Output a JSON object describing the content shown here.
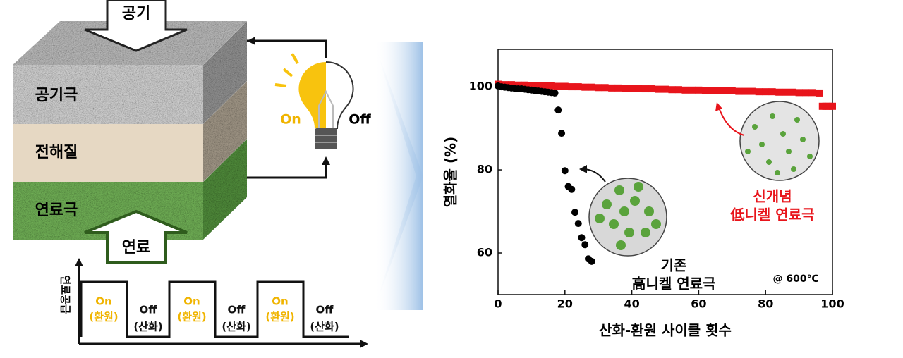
{
  "diagram": {
    "arrows": {
      "top": "공기",
      "bottom": "연료"
    },
    "layers": [
      "공기극",
      "전해질",
      "연료극"
    ],
    "bulb": {
      "on": "On",
      "off": "Off"
    },
    "pulse": {
      "axis_label": "연료공급",
      "phases": [
        {
          "state": "On",
          "action": "(환원)"
        },
        {
          "state": "Off",
          "action": "(산화)"
        },
        {
          "state": "On",
          "action": "(환원)"
        },
        {
          "state": "Off",
          "action": "(산화)"
        },
        {
          "state": "On",
          "action": "(환원)"
        },
        {
          "state": "Off",
          "action": "(산화)"
        }
      ]
    }
  },
  "chart_data": {
    "type": "scatter",
    "x_label": "산화-환원 사이클 횟수",
    "y_label": "열화율 (%)",
    "xlim": [
      0,
      100
    ],
    "xticks": [
      0,
      20,
      40,
      60,
      80,
      100
    ],
    "ylim": [
      50,
      109
    ],
    "yticks": [
      60,
      80,
      100
    ],
    "series": [
      {
        "color": "#e8141b",
        "marker": "square",
        "x": [
          0,
          2,
          4,
          6,
          8,
          10,
          12,
          14,
          16,
          18,
          20,
          22,
          24,
          26,
          28,
          30,
          32,
          34,
          36,
          38,
          40,
          42,
          44,
          46,
          48,
          50,
          52,
          54,
          56,
          58,
          60,
          62,
          64,
          66,
          68,
          70,
          72,
          74,
          76,
          78,
          80,
          82,
          84,
          86,
          88,
          90,
          92,
          94,
          96,
          97,
          98,
          99,
          100
        ],
        "values": [
          100.6,
          100.5,
          100.5,
          100.4,
          100.4,
          100.3,
          100.3,
          100.2,
          100.2,
          100.1,
          100.1,
          100.0,
          100.0,
          99.9,
          99.9,
          99.8,
          99.8,
          99.7,
          99.7,
          99.6,
          99.6,
          99.6,
          99.5,
          99.5,
          99.4,
          99.4,
          99.3,
          99.3,
          99.2,
          99.2,
          99.2,
          99.1,
          99.1,
          99.0,
          99.0,
          99.0,
          98.9,
          98.9,
          98.9,
          98.8,
          98.8,
          98.8,
          98.7,
          98.7,
          98.7,
          98.6,
          98.6,
          98.6,
          98.5,
          95.3,
          95.3,
          95.3,
          95.3
        ]
      },
      {
        "color": "#000000",
        "marker": "circle",
        "x": [
          0,
          1,
          2,
          3,
          4,
          5,
          6,
          7,
          8,
          9,
          10,
          11,
          12,
          13,
          14,
          15,
          16,
          17,
          18,
          19,
          20,
          21,
          22,
          23,
          24,
          25,
          26,
          27,
          28
        ],
        "values": [
          100.2,
          100,
          99.9,
          99.8,
          99.7,
          99.6,
          99.5,
          99.5,
          99.4,
          99.3,
          99.2,
          99.1,
          99.0,
          98.9,
          98.8,
          98.7,
          98.6,
          98.5,
          94.4,
          88.8,
          79.8,
          76,
          75.3,
          69.8,
          67.1,
          63.7,
          62,
          58.6,
          58
        ]
      }
    ],
    "annotations": [
      "기존",
      "高니켈 연료극",
      "신개념",
      "低니켈 연료극",
      "@ 600℃"
    ]
  }
}
